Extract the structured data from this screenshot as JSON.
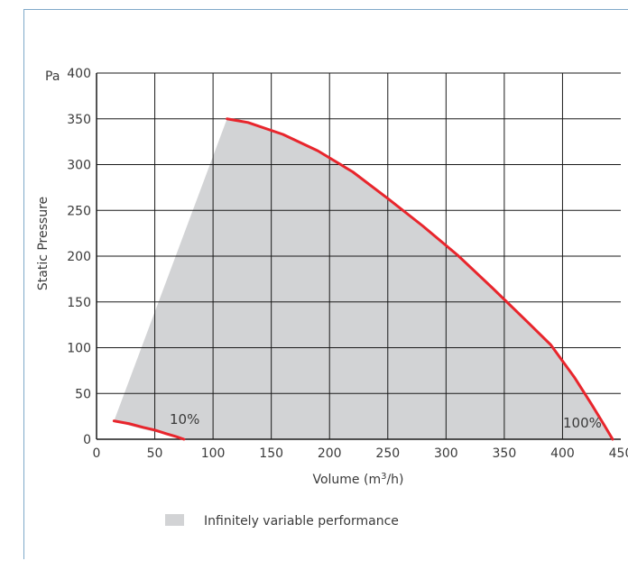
{
  "colors": {
    "envelope": "#d2d3d5",
    "curve": "#e8252c",
    "grid": "#1a1a1a",
    "frame": "#7fa9c9"
  },
  "chart_data": {
    "type": "area",
    "title": "",
    "xlabel": "Volume (m3/h)",
    "ylabel": "Static Pressure",
    "y_unit_label": "Pa",
    "xlim": [
      0,
      450
    ],
    "ylim": [
      0,
      400
    ],
    "x_ticks": [
      0,
      50,
      100,
      150,
      200,
      250,
      300,
      350,
      400,
      450
    ],
    "y_ticks": [
      0,
      50,
      100,
      150,
      200,
      250,
      300,
      350,
      400
    ],
    "grid": true,
    "envelope": {
      "legend": "Infinitely variable performance",
      "points": [
        [
          15,
          20
        ],
        [
          112,
          350
        ],
        [
          130,
          346
        ],
        [
          160,
          333
        ],
        [
          190,
          315
        ],
        [
          220,
          292
        ],
        [
          250,
          263
        ],
        [
          280,
          233
        ],
        [
          310,
          201
        ],
        [
          340,
          165
        ],
        [
          370,
          128
        ],
        [
          390,
          103
        ],
        [
          410,
          68
        ],
        [
          425,
          38
        ],
        [
          436,
          15
        ],
        [
          443,
          0
        ],
        [
          75,
          0
        ],
        [
          60,
          5
        ],
        [
          40,
          11
        ],
        [
          28,
          15
        ],
        [
          15,
          20
        ]
      ]
    },
    "series": [
      {
        "name": "10%",
        "points": [
          [
            15,
            20
          ],
          [
            28,
            17
          ],
          [
            40,
            13
          ],
          [
            50,
            10
          ],
          [
            60,
            6
          ],
          [
            68,
            3
          ],
          [
            75,
            0
          ]
        ]
      },
      {
        "name": "100%",
        "points": [
          [
            112,
            350
          ],
          [
            130,
            346
          ],
          [
            160,
            333
          ],
          [
            190,
            315
          ],
          [
            220,
            292
          ],
          [
            250,
            263
          ],
          [
            280,
            233
          ],
          [
            310,
            201
          ],
          [
            340,
            165
          ],
          [
            370,
            128
          ],
          [
            390,
            103
          ],
          [
            410,
            68
          ],
          [
            425,
            38
          ],
          [
            436,
            15
          ],
          [
            443,
            0
          ]
        ]
      }
    ]
  }
}
